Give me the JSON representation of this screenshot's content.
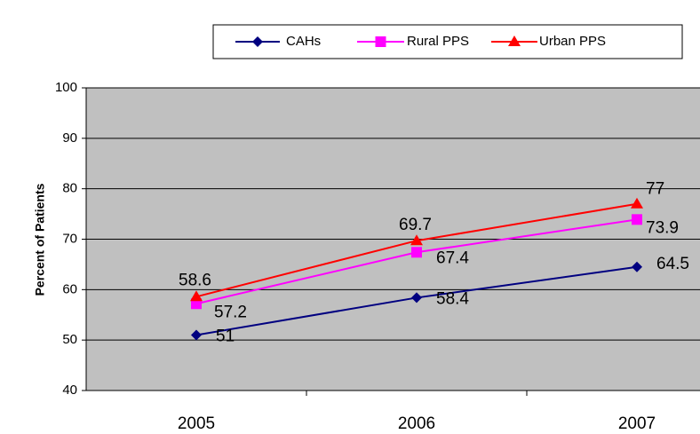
{
  "chart_data": {
    "type": "line",
    "y_label": "Percent of Patients",
    "categories": [
      "2005",
      "2006",
      "2007"
    ],
    "series": [
      {
        "name": "CAHs",
        "color": "#000080",
        "marker": "diamond",
        "values": [
          51,
          58.4,
          64.5
        ]
      },
      {
        "name": "Rural PPS",
        "color": "#ff00ff",
        "marker": "square",
        "values": [
          57.2,
          67.4,
          73.9
        ]
      },
      {
        "name": "Urban PPS",
        "color": "#ff0000",
        "marker": "triangle",
        "values": [
          58.6,
          69.7,
          77
        ]
      }
    ],
    "ylim": [
      40,
      100
    ],
    "yticks": [
      40,
      50,
      60,
      70,
      80,
      90,
      100
    ],
    "grid": true,
    "legend": "top"
  }
}
